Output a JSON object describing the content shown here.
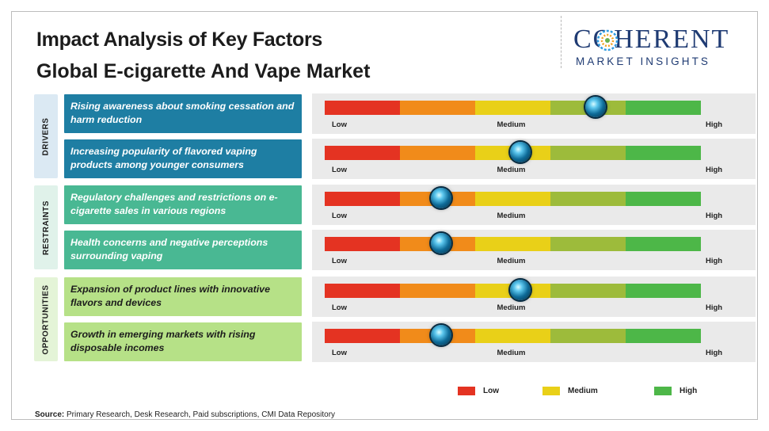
{
  "title": "Impact Analysis of Key Factors",
  "subtitle": "Global E-cigarette And Vape Market",
  "logo": {
    "main": "COHERENT",
    "sub": "MARKET INSIGHTS"
  },
  "groups": [
    {
      "label": "DRIVERS",
      "tab_color": "#dbe9f3",
      "box_color": "#1e7ea3",
      "text_color": "#ffffff"
    },
    {
      "label": "RESTRAINTS",
      "tab_color": "#e0f2ea",
      "box_color": "#49b893",
      "text_color": "#ffffff"
    },
    {
      "label": "OPPORTUNITIES",
      "tab_color": "#e4f4d7",
      "box_color": "#b6e187",
      "text_color": "#1c1c1c"
    }
  ],
  "scale": {
    "low": "Low",
    "medium": "Medium",
    "high": "High"
  },
  "segment_colors": [
    "#e43322",
    "#f18b1a",
    "#e9d018",
    "#9dbb3b",
    "#4db748"
  ],
  "chart_data": {
    "type": "gauge",
    "scale_levels": [
      "Low",
      "Medium",
      "High"
    ],
    "factors": [
      {
        "group": "DRIVERS",
        "text": "Rising awareness about smoking cessation and harm reduction",
        "impact": 0.72
      },
      {
        "group": "DRIVERS",
        "text": "Increasing popularity of flavored vaping products among younger consumers",
        "impact": 0.52
      },
      {
        "group": "RESTRAINTS",
        "text": "Regulatory challenges and restrictions on e-cigarette sales in various regions",
        "impact": 0.31
      },
      {
        "group": "RESTRAINTS",
        "text": "Health concerns and negative perceptions surrounding vaping",
        "impact": 0.31
      },
      {
        "group": "OPPORTUNITIES",
        "text": "Expansion of product lines with innovative flavors and devices",
        "impact": 0.52
      },
      {
        "group": "OPPORTUNITIES",
        "text": "Growth in emerging markets with rising disposable incomes",
        "impact": 0.31
      }
    ],
    "legend": [
      {
        "label": "Low",
        "color": "#e43322"
      },
      {
        "label": "Medium",
        "color": "#e9d018"
      },
      {
        "label": "High",
        "color": "#4db748"
      }
    ]
  },
  "source": {
    "label": "Source:",
    "text": "Primary Research, Desk Research, Paid subscriptions, CMI Data Repository"
  }
}
